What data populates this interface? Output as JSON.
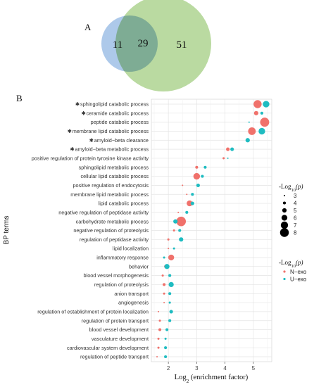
{
  "panel_a": {
    "label": "A",
    "venn": {
      "left_only": "11",
      "overlap": "29",
      "right_only": "51"
    },
    "colors": {
      "left": "#9fc0e6",
      "right": "#a7cf86",
      "overlap": "#6f9b74"
    }
  },
  "panel_b": {
    "label": "B"
  },
  "chart_data": {
    "type": "scatter",
    "xlabel_main": "Log",
    "xlabel_sub": "2",
    "xlabel_rest": " (enrichment factor)",
    "ylabel": "BP terms",
    "x_ticks": [
      2,
      3,
      4,
      5
    ],
    "xlim": [
      1.4,
      5.65
    ],
    "categories": [
      "sphingolipid catabolic process",
      "ceramide catabolic process",
      "peptide catabolic process",
      "membrane lipid catabolic process",
      "amyloid−beta clearance",
      "amyloid−beta metabolic process",
      "positive regulation of protein tyrosine kinase activity",
      "sphingolipid metabolic process",
      "cellular lipid catabolic process",
      "positive regulation of endocytosis",
      "membrane lipid metabolic process",
      "lipid catabolic process",
      "negative regulation of peptidase activity",
      "carbohydrate metabolic process",
      "negative regulation of proteolysis",
      "regulation of peptidase activity",
      "lipid localization",
      "inflammatory response",
      "behavior",
      "blood vessel morphogenesis",
      "regulation of proteolysis",
      "anion transport",
      "angiogenesis",
      "regulation of establishment of protein localization",
      "regulation of protein transport",
      "blood vessel development",
      "vasculature development",
      "cardiovascular system development",
      "regulation of peptide transport"
    ],
    "asterisk_marker": "✱",
    "starred": [
      0,
      1,
      3,
      4,
      5
    ],
    "series": [
      {
        "name": "N−exo",
        "color": "#f0716b",
        "points": [
          {
            "x": 5.15,
            "p": 7.5
          },
          {
            "x": 5.1,
            "p": 5
          },
          {
            "x": 5.4,
            "p": 8.2
          },
          {
            "x": 4.95,
            "p": 7.2
          },
          {
            "x": null,
            "p": null
          },
          {
            "x": 4.1,
            "p": 4.5
          },
          {
            "x": 3.95,
            "p": 3.5
          },
          {
            "x": 3.0,
            "p": 4
          },
          {
            "x": 3.0,
            "p": 6.5
          },
          {
            "x": 2.5,
            "p": 3
          },
          {
            "x": 2.65,
            "p": 3
          },
          {
            "x": 2.75,
            "p": 6
          },
          {
            "x": 2.35,
            "p": 3
          },
          {
            "x": 2.45,
            "p": 8.5
          },
          {
            "x": 2.2,
            "p": 3.5
          },
          {
            "x": 2.0,
            "p": 3.5
          },
          {
            "x": 2.0,
            "p": 3
          },
          {
            "x": 2.1,
            "p": 6
          },
          {
            "x": 1.9,
            "p": 4
          },
          {
            "x": 1.8,
            "p": 3.5
          },
          {
            "x": 1.85,
            "p": 4
          },
          {
            "x": 1.85,
            "p": 3.5
          },
          {
            "x": 1.85,
            "p": 3
          },
          {
            "x": 1.65,
            "p": 3
          },
          {
            "x": 1.7,
            "p": 3.5
          },
          {
            "x": 1.7,
            "p": 4
          },
          {
            "x": 1.65,
            "p": 3.5
          },
          {
            "x": 1.65,
            "p": 3.5
          },
          {
            "x": 1.6,
            "p": 3
          }
        ]
      },
      {
        "name": "U−exo",
        "color": "#1fbcc1",
        "points": [
          {
            "x": 5.45,
            "p": 6.5
          },
          {
            "x": 5.3,
            "p": 4
          },
          {
            "x": 4.85,
            "p": 3
          },
          {
            "x": 5.3,
            "p": 6.5
          },
          {
            "x": 4.8,
            "p": 5
          },
          {
            "x": 4.25,
            "p": 4.5
          },
          {
            "x": 4.1,
            "p": 3
          },
          {
            "x": 3.3,
            "p": 4
          },
          {
            "x": 3.2,
            "p": 4
          },
          {
            "x": 3.05,
            "p": 4.5
          },
          {
            "x": 2.85,
            "p": 4
          },
          {
            "x": 2.85,
            "p": 4.5
          },
          {
            "x": 2.65,
            "p": 4
          },
          {
            "x": 2.25,
            "p": 5
          },
          {
            "x": 2.4,
            "p": 4
          },
          {
            "x": 2.45,
            "p": 5
          },
          {
            "x": 2.2,
            "p": 3.5
          },
          {
            "x": 1.85,
            "p": 3.5
          },
          {
            "x": 1.95,
            "p": 5.5
          },
          {
            "x": 2.05,
            "p": 4
          },
          {
            "x": 2.1,
            "p": 5.5
          },
          {
            "x": 2.05,
            "p": 4
          },
          {
            "x": 2.05,
            "p": 3.5
          },
          {
            "x": 2.1,
            "p": 4.5
          },
          {
            "x": 2.05,
            "p": 4
          },
          {
            "x": 1.95,
            "p": 4
          },
          {
            "x": 1.9,
            "p": 3.5
          },
          {
            "x": 1.9,
            "p": 4
          },
          {
            "x": 1.9,
            "p": 4
          }
        ]
      }
    ],
    "size_legend": {
      "title_main": "-Log",
      "title_sub": "10",
      "title_rest": "(p)",
      "values": [
        3,
        4,
        5,
        6,
        7,
        8
      ]
    },
    "color_legend": {
      "title_main": "-Log",
      "title_sub": "10",
      "title_rest": "(p)",
      "entries": [
        "N−exo",
        "U−exo"
      ]
    },
    "grid": true,
    "panel_background": "#ffffff",
    "grid_color": "#e4e4e4"
  }
}
